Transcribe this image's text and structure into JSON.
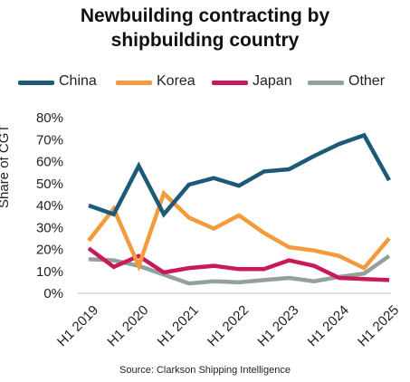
{
  "chart_data": {
    "type": "line",
    "title_lines": [
      "Newbuilding contracting by",
      "shipbuilding country"
    ],
    "ylabel": "Share of CGT",
    "xlabel": "",
    "source": "Source: Clarkson Shipping Intelligence",
    "ylim": [
      0,
      80
    ],
    "y_ticks": [
      0,
      10,
      20,
      30,
      40,
      50,
      60,
      70,
      80
    ],
    "y_tick_suffix": "%",
    "grid": false,
    "legend_position": "top",
    "x": [
      "H1 2019",
      "H2 2019",
      "H1 2020",
      "H2 2020",
      "H1 2021",
      "H2 2021",
      "H1 2022",
      "H2 2022",
      "H1 2023",
      "H2 2023",
      "H1 2024",
      "H2 2024",
      "H1 2025"
    ],
    "x_tick_labels": [
      "H1 2019",
      "H1 2020",
      "H1 2021",
      "H1 2022",
      "H1 2023",
      "H1 2024",
      "H1 2025"
    ],
    "series": [
      {
        "name": "China",
        "color": "#1c5a7a",
        "values": [
          40,
          36,
          58,
          36,
          49.5,
          52.5,
          49,
          55.5,
          56.5,
          62.5,
          68,
          72,
          51.5
        ]
      },
      {
        "name": "Korea",
        "color": "#f39a3c",
        "values": [
          24,
          38.5,
          12.5,
          45.5,
          34.5,
          29.5,
          35.5,
          27.5,
          21,
          19.5,
          17,
          11.5,
          25
        ]
      },
      {
        "name": "Japan",
        "color": "#c8195c",
        "values": [
          20.5,
          12,
          17,
          9.5,
          11.5,
          12.5,
          11,
          11,
          15,
          12.5,
          7,
          6.5,
          6
        ]
      },
      {
        "name": "Other",
        "color": "#93a09c",
        "values": [
          15.5,
          15,
          12.5,
          8.5,
          4.5,
          5.5,
          5,
          6,
          7,
          5.5,
          7.5,
          9,
          17
        ]
      }
    ]
  }
}
